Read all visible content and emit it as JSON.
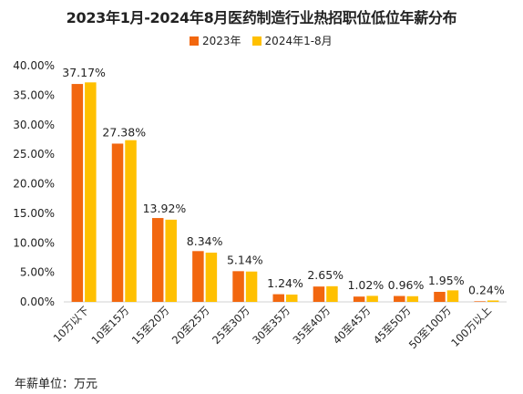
{
  "chart_data": {
    "type": "bar",
    "title": "2023年1月-2024年8月医药制造行业热招职位低位年薪分布",
    "categories": [
      "10万以下",
      "10至15万",
      "15至20万",
      "20至25万",
      "25至30万",
      "30至35万",
      "35至40万",
      "40至45万",
      "45至50万",
      "50至100万",
      "100万以上"
    ],
    "series": [
      {
        "name": "2023年",
        "color": "#F2670F",
        "values": [
          36.9,
          26.8,
          14.2,
          8.6,
          5.2,
          1.3,
          2.6,
          0.9,
          1.0,
          1.7,
          0.1
        ]
      },
      {
        "name": "2024年1-8月",
        "color": "#FFC000",
        "values": [
          37.17,
          27.38,
          13.92,
          8.34,
          5.14,
          1.24,
          2.65,
          1.02,
          0.96,
          1.95,
          0.24
        ]
      }
    ],
    "data_labels": [
      "37.17%",
      "27.38%",
      "13.92%",
      "8.34%",
      "5.14%",
      "1.24%",
      "2.65%",
      "1.02%",
      "0.96%",
      "1.95%",
      "0.24%"
    ],
    "y_ticks": [
      "0.00%",
      "5.00%",
      "10.00%",
      "15.00%",
      "20.00%",
      "25.00%",
      "30.00%",
      "35.00%",
      "40.00%"
    ],
    "ylim": [
      0,
      40
    ],
    "grid": false,
    "legend_position": "top"
  },
  "footer": {
    "unit_note": "年薪单位：万元"
  }
}
